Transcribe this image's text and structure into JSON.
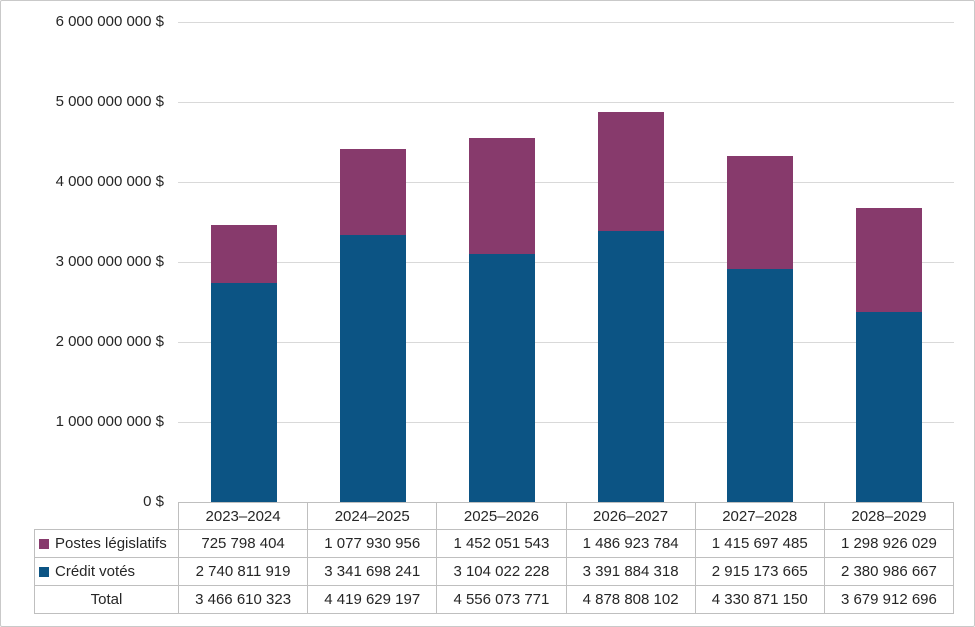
{
  "figure": {
    "background": "#ffffff",
    "border_color": "#c9c9c9",
    "text_color": "#262626",
    "gridline_color": "#d9d9d9",
    "table_border_color": "#bfbfbf"
  },
  "chart_data": {
    "type": "bar",
    "stacked": true,
    "grid": true,
    "legend_position": "table-left",
    "categories": [
      "2023–2024",
      "2024–2025",
      "2025–2026",
      "2026–2027",
      "2027–2028",
      "2028–2029"
    ],
    "series": [
      {
        "name": "Crédit votés",
        "color": "#0c5484",
        "values": [
          2740811919,
          3341698241,
          3104022228,
          3391884318,
          2915173665,
          2380986667
        ]
      },
      {
        "name": "Postes législatifs",
        "color": "#873a6c",
        "values": [
          725798404,
          1077930956,
          1452051543,
          1486923784,
          1415697485,
          1298926029
        ]
      }
    ],
    "totals": [
      3466610323,
      4419629197,
      4556073771,
      4878808102,
      4330871150,
      3679912696
    ],
    "ylim": [
      0,
      6000000000
    ],
    "ytick_step": 1000000000,
    "ytick_labels": [
      "0 $",
      "1 000 000 000 $",
      "2 000 000 000 $",
      "3 000 000 000 $",
      "4 000 000 000 $",
      "5 000 000 000 $",
      "6 000 000 000 $"
    ]
  },
  "table": {
    "corner_label": "",
    "rows": [
      {
        "label": "Postes législatifs",
        "swatch_color": "#873a6c",
        "values": [
          "725 798 404",
          "1 077 930 956",
          "1 452 051 543",
          "1 486 923 784",
          "1 415 697 485",
          "1 298 926 029"
        ]
      },
      {
        "label": "Crédit votés",
        "swatch_color": "#0c5484",
        "values": [
          "2 740 811 919",
          "3 341 698 241",
          "3 104 022 228",
          "3 391 884 318",
          "2 915 173 665",
          "2 380 986 667"
        ]
      },
      {
        "label": "Total",
        "swatch_color": null,
        "values": [
          "3 466 610 323",
          "4 419 629 197",
          "4 556 073 771",
          "4 878 808 102",
          "4 330 871 150",
          "3 679 912 696"
        ]
      }
    ]
  }
}
